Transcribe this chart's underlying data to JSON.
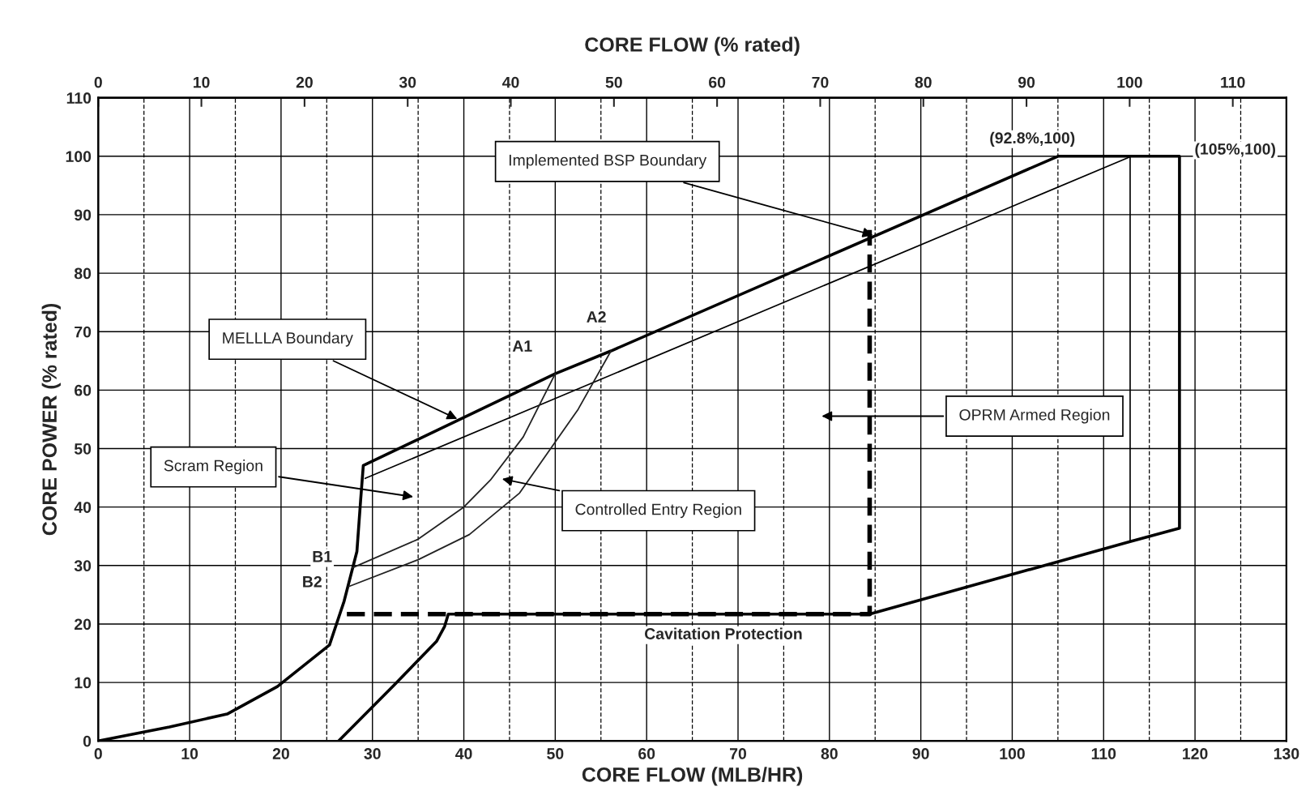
{
  "chart_data": {
    "type": "line",
    "xlabel": "CORE FLOW (MLB/HR)",
    "ylabel": "CORE POWER (% rated)",
    "x2label": "CORE FLOW (% rated)",
    "xlim": [
      0,
      130
    ],
    "xticks": [
      0,
      10,
      20,
      30,
      40,
      50,
      60,
      70,
      80,
      90,
      100,
      110,
      120,
      130
    ],
    "ylim": [
      0,
      110
    ],
    "yticks": [
      0,
      10,
      20,
      30,
      40,
      50,
      60,
      70,
      80,
      90,
      100,
      110
    ],
    "x2lim": [
      0,
      115.2
    ],
    "x2ticks": [
      0,
      10,
      20,
      30,
      40,
      50,
      60,
      70,
      80,
      90,
      100,
      110
    ],
    "grid": true,
    "legend": false,
    "marker": "none",
    "series": [
      {
        "color": "#000000",
        "line_style": "solid",
        "x": [
          0,
          7.8,
          14.1,
          19.6,
          25.3,
          26.9,
          28.3,
          28.7,
          29,
          50,
          56.1,
          105,
          118.3,
          118.3,
          112.9,
          84.4,
          38.3,
          37.9,
          37,
          32.4,
          26.3
        ],
        "values": [
          0,
          2.4,
          4.6,
          9.3,
          16.4,
          23.9,
          32.4,
          41,
          47.1,
          62.8,
          66.7,
          100,
          100,
          36.4,
          34.1,
          21.7,
          21.7,
          19.6,
          17,
          9.6,
          0
        ]
      },
      {
        "color": "#000000",
        "line_style": "solid",
        "x": [
          29.2,
          112.9,
          112.9
        ],
        "values": [
          44.9,
          99.9,
          34.1
        ]
      },
      {
        "color": "#000000",
        "line_style": "dashed",
        "x": [
          27.2,
          84.4,
          84.4
        ],
        "values": [
          21.7,
          21.7,
          87.4
        ]
      },
      {
        "color": "#222222",
        "line_style": "solid",
        "x": [
          27.8,
          35,
          40,
          42.9,
          46.5,
          50
        ],
        "values": [
          29.6,
          34.5,
          40,
          44.6,
          52,
          62.8
        ]
      },
      {
        "color": "#222222",
        "line_style": "solid",
        "x": [
          27.4,
          35,
          40.6,
          46.1,
          52.5,
          56.1
        ],
        "values": [
          26.4,
          31,
          35.3,
          42.4,
          56.7,
          66.7
        ]
      }
    ],
    "annotations": [
      {
        "text": "Implemented BSP Boundary",
        "x": 85,
        "y": 86.4
      },
      {
        "text": "MELLLA Boundary",
        "x": 39.5,
        "y": 54.9
      },
      {
        "text": "A1",
        "x": 50,
        "y": 62.8
      },
      {
        "text": "A2",
        "x": 56.1,
        "y": 66.7
      },
      {
        "text": "B1",
        "x": 27.8,
        "y": 29.6
      },
      {
        "text": "B2",
        "x": 27.4,
        "y": 26.4
      },
      "Scram Region",
      "Controlled Entry Region",
      "OPRM Armed Region",
      {
        "text": "Cavitation Protection",
        "x": 68.4,
        "y": 21.7
      },
      {
        "text": "(92.8%,100)",
        "x": 105,
        "y": 100
      },
      {
        "text": "(105%,100)",
        "x": 118.3,
        "y": 100
      }
    ]
  }
}
